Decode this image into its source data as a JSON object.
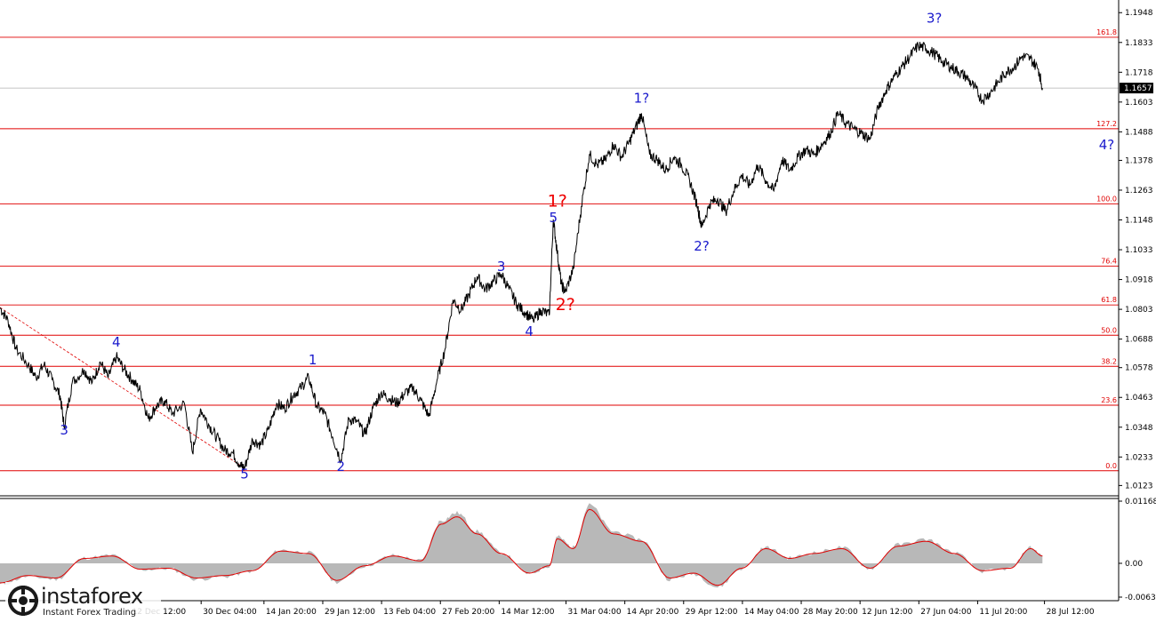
{
  "chart_data": {
    "type": "line",
    "symbol_price_current": "1.1657",
    "y_ticks": [
      "1.1948",
      "1.1833",
      "1.1718",
      "1.1603",
      "1.1488",
      "1.1378",
      "1.1263",
      "1.1148",
      "1.1033",
      "1.0918",
      "1.0803",
      "1.0688",
      "1.0578",
      "1.0463",
      "1.0348",
      "1.0233",
      "1.0123"
    ],
    "x_ticks": [
      "12 Dec 12:00",
      "30 Dec 04:00",
      "14 Jan 20:00",
      "29 Jan 12:00",
      "13 Feb 04:00",
      "27 Feb 20:00",
      "14 Mar 12:00",
      "31 Mar 04:00",
      "14 Apr 20:00",
      "29 Apr 12:00",
      "14 May 04:00",
      "28 May 20:00",
      "12 Jun 12:00",
      "27 Jun 04:00",
      "11 Jul 20:00",
      "28 Jul 12:00"
    ],
    "fib_levels": [
      {
        "label": "161.8",
        "value": 1.1853
      },
      {
        "label": "127.2",
        "value": 1.15
      },
      {
        "label": "100.0",
        "value": 1.121
      },
      {
        "label": "76.4",
        "value": 1.097
      },
      {
        "label": "61.8",
        "value": 1.082
      },
      {
        "label": "50.0",
        "value": 1.0703
      },
      {
        "label": "38.2",
        "value": 1.0583
      },
      {
        "label": "23.6",
        "value": 1.0433
      },
      {
        "label": "0.0",
        "value": 1.018
      }
    ],
    "wave_labels": [
      {
        "text": "3",
        "x": "26 Nov",
        "y": 1.032,
        "red": false
      },
      {
        "text": "4",
        "x": "09 Dec",
        "y": 1.066,
        "red": false
      },
      {
        "text": "5",
        "x": "10 Jan",
        "y": 1.015,
        "red": false
      },
      {
        "text": "1",
        "x": "27 Jan",
        "y": 1.059,
        "red": false
      },
      {
        "text": "2",
        "x": "03 Feb",
        "y": 1.018,
        "red": false
      },
      {
        "text": "3",
        "x": "15 Mar",
        "y": 1.095,
        "red": false
      },
      {
        "text": "4",
        "x": "22 Mar",
        "y": 1.07,
        "red": false
      },
      {
        "text": "5",
        "x": "28 Mar",
        "y": 1.114,
        "red": false
      },
      {
        "text": "1?",
        "x": "29 Mar",
        "y": 1.12,
        "red": true
      },
      {
        "text": "2?",
        "x": "31 Mar",
        "y": 1.08,
        "red": true
      },
      {
        "text": "1?",
        "x": "19 Apr",
        "y": 1.16,
        "red": false
      },
      {
        "text": "2?",
        "x": "04 May",
        "y": 1.103,
        "red": false
      },
      {
        "text": "3?",
        "x": "01 Jul",
        "y": 1.191,
        "red": false
      },
      {
        "text": "4?",
        "x": "13 Aug",
        "y": 1.142,
        "red": false
      }
    ],
    "price_series": {
      "name": "",
      "points": [
        [
          "10 Nov",
          1.081
        ],
        [
          "12 Nov",
          1.076
        ],
        [
          "14 Nov",
          1.065
        ],
        [
          "17 Nov",
          1.059
        ],
        [
          "19 Nov",
          1.054
        ],
        [
          "21 Nov",
          1.059
        ],
        [
          "23 Nov",
          1.053
        ],
        [
          "25 Nov",
          1.047
        ],
        [
          "26 Nov",
          1.035
        ],
        [
          "28 Nov",
          1.052
        ],
        [
          "01 Dec",
          1.057
        ],
        [
          "03 Dec",
          1.052
        ],
        [
          "05 Dec",
          1.06
        ],
        [
          "07 Dec",
          1.054
        ],
        [
          "09 Dec",
          1.062
        ],
        [
          "11 Dec",
          1.057
        ],
        [
          "13 Dec",
          1.053
        ],
        [
          "15 Dec",
          1.049
        ],
        [
          "17 Dec",
          1.038
        ],
        [
          "19 Dec",
          1.043
        ],
        [
          "21 Dec",
          1.045
        ],
        [
          "23 Dec",
          1.04
        ],
        [
          "26 Dec",
          1.044
        ],
        [
          "28 Dec",
          1.025
        ],
        [
          "30 Dec",
          1.042
        ],
        [
          "01 Jan",
          1.036
        ],
        [
          "03 Jan",
          1.031
        ],
        [
          "05 Jan",
          1.026
        ],
        [
          "07 Jan",
          1.025
        ],
        [
          "09 Jan",
          1.02
        ],
        [
          "10 Jan",
          1.019
        ],
        [
          "12 Jan",
          1.03
        ],
        [
          "14 Jan",
          1.028
        ],
        [
          "16 Jan",
          1.034
        ],
        [
          "18 Jan",
          1.044
        ],
        [
          "20 Jan",
          1.042
        ],
        [
          "22 Jan",
          1.047
        ],
        [
          "24 Jan",
          1.05
        ],
        [
          "26 Jan",
          1.054
        ],
        [
          "28 Jan",
          1.043
        ],
        [
          "30 Jan",
          1.04
        ],
        [
          "01 Feb",
          1.031
        ],
        [
          "03 Feb",
          1.022
        ],
        [
          "05 Feb",
          1.038
        ],
        [
          "07 Feb",
          1.037
        ],
        [
          "09 Feb",
          1.032
        ],
        [
          "11 Feb",
          1.042
        ],
        [
          "13 Feb",
          1.048
        ],
        [
          "15 Feb",
          1.046
        ],
        [
          "17 Feb",
          1.044
        ],
        [
          "19 Feb",
          1.048
        ],
        [
          "21 Feb",
          1.05
        ],
        [
          "23 Feb",
          1.045
        ],
        [
          "25 Feb",
          1.039
        ],
        [
          "27 Feb",
          1.053
        ],
        [
          "01 Mar",
          1.065
        ],
        [
          "03 Mar",
          1.084
        ],
        [
          "05 Mar",
          1.08
        ],
        [
          "07 Mar",
          1.086
        ],
        [
          "09 Mar",
          1.093
        ],
        [
          "11 Mar",
          1.088
        ],
        [
          "13 Mar",
          1.091
        ],
        [
          "15 Mar",
          1.094
        ],
        [
          "17 Mar",
          1.088
        ],
        [
          "19 Mar",
          1.082
        ],
        [
          "21 Mar",
          1.079
        ],
        [
          "23 Mar",
          1.076
        ],
        [
          "25 Mar",
          1.08
        ],
        [
          "27 Mar",
          1.078
        ],
        [
          "28 Mar",
          1.115
        ],
        [
          "29 Mar",
          1.102
        ],
        [
          "30 Mar",
          1.09
        ],
        [
          "31 Mar",
          1.087
        ],
        [
          "02 Apr",
          1.096
        ],
        [
          "04 Apr",
          1.12
        ],
        [
          "06 Apr",
          1.14
        ],
        [
          "08 Apr",
          1.136
        ],
        [
          "10 Apr",
          1.138
        ],
        [
          "12 Apr",
          1.144
        ],
        [
          "14 Apr",
          1.139
        ],
        [
          "16 Apr",
          1.145
        ],
        [
          "18 Apr",
          1.152
        ],
        [
          "19 Apr",
          1.156
        ],
        [
          "21 Apr",
          1.14
        ],
        [
          "23 Apr",
          1.138
        ],
        [
          "25 Apr",
          1.134
        ],
        [
          "27 Apr",
          1.139
        ],
        [
          "29 Apr",
          1.136
        ],
        [
          "01 May",
          1.13
        ],
        [
          "03 May",
          1.12
        ],
        [
          "04 May",
          1.112
        ],
        [
          "06 May",
          1.121
        ],
        [
          "08 May",
          1.123
        ],
        [
          "10 May",
          1.118
        ],
        [
          "12 May",
          1.126
        ],
        [
          "14 May",
          1.132
        ],
        [
          "16 May",
          1.128
        ],
        [
          "18 May",
          1.136
        ],
        [
          "20 May",
          1.13
        ],
        [
          "22 May",
          1.126
        ],
        [
          "24 May",
          1.138
        ],
        [
          "26 May",
          1.134
        ],
        [
          "28 May",
          1.139
        ],
        [
          "30 May",
          1.142
        ],
        [
          "01 Jun",
          1.14
        ],
        [
          "03 Jun",
          1.144
        ],
        [
          "05 Jun",
          1.148
        ],
        [
          "07 Jun",
          1.156
        ],
        [
          "09 Jun",
          1.152
        ],
        [
          "11 Jun",
          1.15
        ],
        [
          "13 Jun",
          1.148
        ],
        [
          "15 Jun",
          1.146
        ],
        [
          "17 Jun",
          1.158
        ],
        [
          "19 Jun",
          1.165
        ],
        [
          "21 Jun",
          1.17
        ],
        [
          "23 Jun",
          1.174
        ],
        [
          "25 Jun",
          1.178
        ],
        [
          "27 Jun",
          1.182
        ],
        [
          "29 Jun",
          1.181
        ],
        [
          "01 Jul",
          1.179
        ],
        [
          "03 Jul",
          1.176
        ],
        [
          "05 Jul",
          1.174
        ],
        [
          "07 Jul",
          1.172
        ],
        [
          "09 Jul",
          1.17
        ],
        [
          "11 Jul",
          1.166
        ],
        [
          "13 Jul",
          1.161
        ],
        [
          "15 Jul",
          1.164
        ],
        [
          "17 Jul",
          1.168
        ],
        [
          "19 Jul",
          1.172
        ],
        [
          "21 Jul",
          1.174
        ],
        [
          "23 Jul",
          1.178
        ],
        [
          "25 Jul",
          1.177
        ],
        [
          "27 Jul",
          1.173
        ],
        [
          "28 Jul",
          1.1657
        ]
      ]
    },
    "oscillator": {
      "y_ticks": [
        "0.01168",
        "0.00",
        "-0.00635"
      ],
      "ylim": [
        -0.00635,
        0.01168
      ],
      "points": [
        [
          "10 Nov",
          -0.004
        ],
        [
          "17 Nov",
          -0.0025
        ],
        [
          "24 Nov",
          -0.003
        ],
        [
          "01 Dec",
          0.001
        ],
        [
          "08 Dec",
          0.0015
        ],
        [
          "15 Dec",
          -0.0012
        ],
        [
          "22 Dec",
          -0.001
        ],
        [
          "29 Dec",
          -0.003
        ],
        [
          "05 Jan",
          -0.0025
        ],
        [
          "12 Jan",
          -0.0015
        ],
        [
          "19 Jan",
          0.0025
        ],
        [
          "26 Jan",
          0.002
        ],
        [
          "02 Feb",
          -0.0035
        ],
        [
          "09 Feb",
          -0.0005
        ],
        [
          "16 Feb",
          0.0015
        ],
        [
          "23 Feb",
          0.0005
        ],
        [
          "28 Feb",
          0.008
        ],
        [
          "04 Mar",
          0.0095
        ],
        [
          "09 Mar",
          0.006
        ],
        [
          "15 Mar",
          0.002
        ],
        [
          "22 Mar",
          -0.002
        ],
        [
          "27 Mar",
          -0.0005
        ],
        [
          "29 Mar",
          0.005
        ],
        [
          "02 Apr",
          0.003
        ],
        [
          "06 Apr",
          0.011
        ],
        [
          "12 Apr",
          0.006
        ],
        [
          "19 Apr",
          0.0045
        ],
        [
          "26 Apr",
          -0.003
        ],
        [
          "02 May",
          -0.002
        ],
        [
          "08 May",
          -0.0045
        ],
        [
          "14 May",
          -0.001
        ],
        [
          "20 May",
          0.003
        ],
        [
          "26 May",
          0.001
        ],
        [
          "01 Jun",
          0.002
        ],
        [
          "08 Jun",
          0.003
        ],
        [
          "15 Jun",
          -0.001
        ],
        [
          "22 Jun",
          0.0035
        ],
        [
          "29 Jun",
          0.0045
        ],
        [
          "06 Jul",
          0.002
        ],
        [
          "13 Jul",
          -0.0015
        ],
        [
          "20 Jul",
          -0.001
        ],
        [
          "25 Jul",
          0.003
        ],
        [
          "28 Jul",
          0.0015
        ]
      ]
    },
    "xlim": [
      "10 Nov",
      "16 Aug"
    ],
    "ylim": [
      1.009,
      1.199
    ],
    "grid": false,
    "colors": {
      "fib_line": "#e00000",
      "wave_label": "#1a1acc",
      "wave_label_red": "#ee0000",
      "price_line": "#000000",
      "osc_fill": "#b8b8b8",
      "osc_signal": "#e00000",
      "trend_line": "#e00000",
      "price_box": "#000000"
    }
  },
  "logo": {
    "name": "instaforex",
    "tagline": "Instant Forex Trading"
  }
}
